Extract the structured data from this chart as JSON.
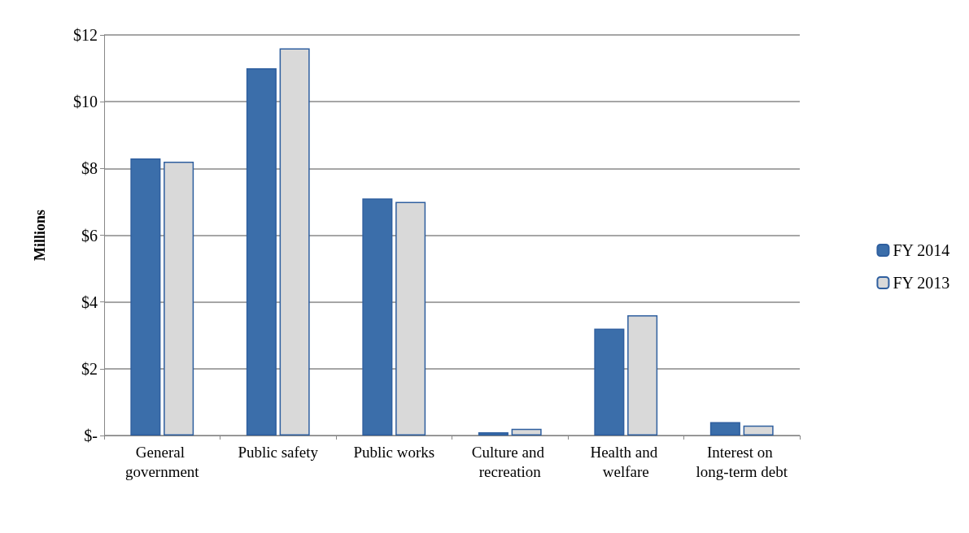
{
  "chart_data": {
    "type": "bar",
    "ylabel": "Millions",
    "categories": [
      "General government",
      "Public safety",
      "Public works",
      "Culture and recreation",
      "Health and welfare",
      "Interest on long-term debt"
    ],
    "series": [
      {
        "name": "FY 2014",
        "color": "#3b6eaa",
        "values": [
          8.3,
          11.0,
          7.1,
          0.1,
          3.2,
          0.4
        ]
      },
      {
        "name": "FY 2013",
        "color": "#d9d9d9",
        "values": [
          8.2,
          11.6,
          7.0,
          0.2,
          3.6,
          0.3
        ]
      }
    ],
    "ylim": [
      0,
      12
    ],
    "yticks": [
      {
        "value": 0,
        "label": "$-"
      },
      {
        "value": 2,
        "label": "$2"
      },
      {
        "value": 4,
        "label": "$4"
      },
      {
        "value": 6,
        "label": "$6"
      },
      {
        "value": 8,
        "label": "$8"
      },
      {
        "value": 10,
        "label": "$10"
      },
      {
        "value": 12,
        "label": "$12"
      }
    ],
    "grid": "y",
    "legend": "right"
  }
}
